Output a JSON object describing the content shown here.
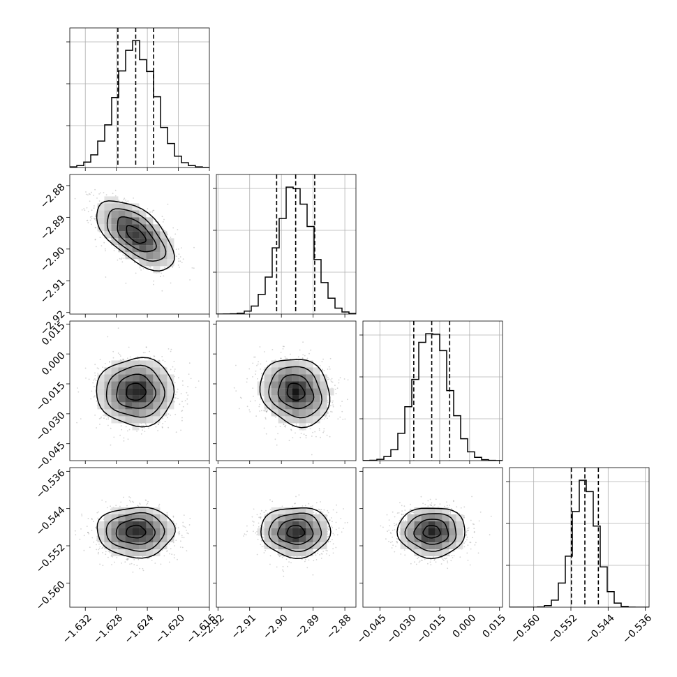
{
  "chart_data": {
    "type": "corner",
    "grid": true,
    "parameters": [
      {
        "mean": -1.6255,
        "sd": 0.0025,
        "range": [
          -1.634,
          -1.616
        ],
        "ticks": [
          -1.632,
          -1.628,
          -1.624,
          -1.62,
          -1.616
        ],
        "tick_labels": [
          "−1.632",
          "−1.628",
          "−1.624",
          "−1.620",
          "−1.616"
        ],
        "quantiles": [
          -1.6278,
          -1.6255,
          -1.6232
        ]
      },
      {
        "mean": -2.8955,
        "sd": 0.0055,
        "range": [
          -2.9205,
          -2.8765
        ],
        "ticks": [
          -2.92,
          -2.91,
          -2.9,
          -2.89,
          -2.88
        ],
        "tick_labels": [
          "−2.92",
          "−2.91",
          "−2.90",
          "−2.89",
          "−2.88"
        ],
        "quantiles": [
          -2.9015,
          -2.8955,
          -2.8895
        ]
      },
      {
        "mean": -0.019,
        "sd": 0.0085,
        "range": [
          -0.0535,
          0.0165
        ],
        "ticks": [
          -0.045,
          -0.03,
          -0.015,
          0.0,
          0.015
        ],
        "tick_labels": [
          "−0.045",
          "−0.030",
          "−0.015",
          "0.000",
          "0.015"
        ],
        "quantiles": [
          -0.028,
          -0.019,
          -0.01
        ]
      },
      {
        "mean": -0.549,
        "sd": 0.0027,
        "range": [
          -0.5652,
          -0.5352
        ],
        "ticks": [
          -0.56,
          -0.552,
          -0.544,
          -0.536
        ],
        "tick_labels": [
          "−0.560",
          "−0.552",
          "−0.544",
          "−0.536"
        ],
        "quantiles": [
          -0.5519,
          -0.549,
          -0.5461
        ]
      }
    ],
    "correlations": [
      [
        0,
        1,
        -0.6
      ],
      [
        0,
        2,
        0.0
      ],
      [
        0,
        3,
        0.0
      ],
      [
        1,
        2,
        -0.15
      ],
      [
        1,
        3,
        0.0
      ],
      [
        2,
        3,
        0.0
      ]
    ],
    "levels": [
      0.5,
      1.0,
      1.5,
      2.0
    ]
  }
}
